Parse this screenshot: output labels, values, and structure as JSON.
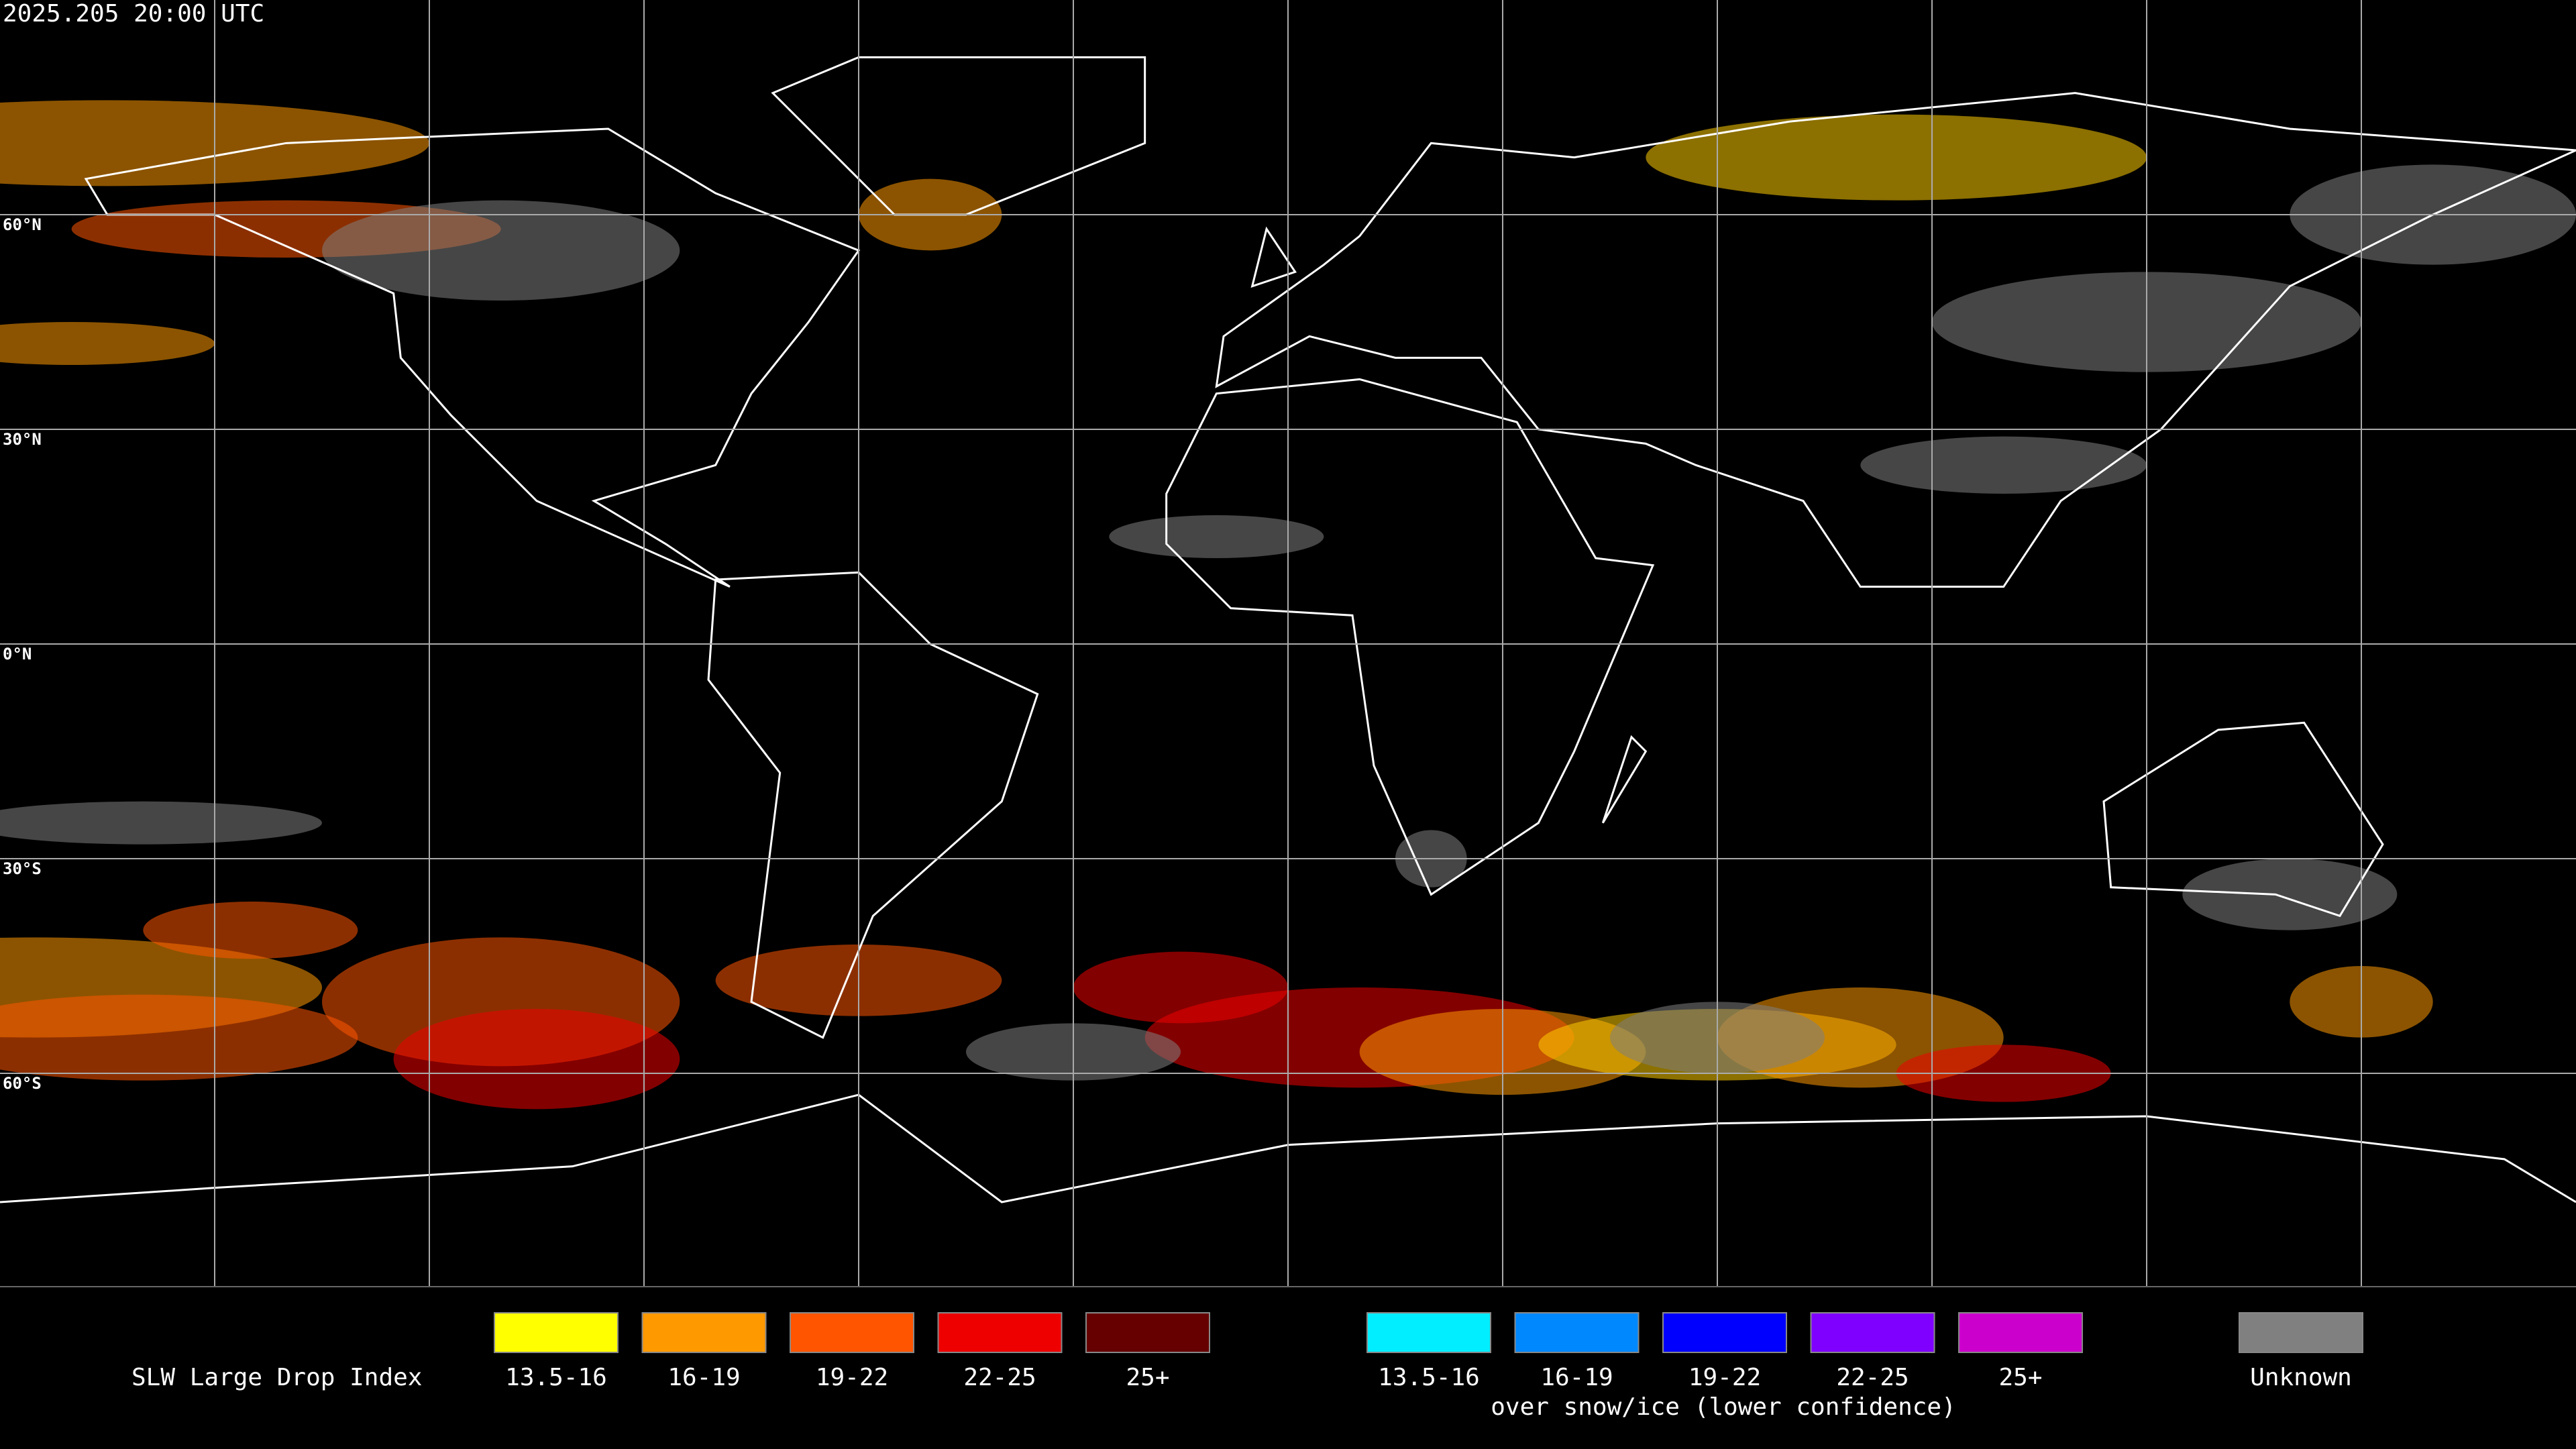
{
  "timestamp": "2025.205 20:00 UTC",
  "map": {
    "lat_labels": [
      "60°N",
      "30°N",
      "0°N",
      "30°S",
      "60°S"
    ]
  },
  "legend": {
    "title": "SLW Large Drop Index",
    "groups": [
      {
        "items": [
          {
            "label": "13.5-16",
            "color": "#ffff00"
          },
          {
            "label": "16-19",
            "color": "#ff9900"
          },
          {
            "label": "19-22",
            "color": "#ff5500"
          },
          {
            "label": "22-25",
            "color": "#ee0000"
          },
          {
            "label": "25+",
            "color": "#660000"
          }
        ]
      },
      {
        "items": [
          {
            "label": "13.5-16",
            "color": "#00eeff"
          },
          {
            "label": "16-19",
            "color": "#0088ff"
          },
          {
            "label": "19-22",
            "color": "#0000ff"
          },
          {
            "label": "22-25",
            "color": "#8000ff"
          },
          {
            "label": "25+",
            "color": "#cc00cc"
          }
        ],
        "note": "over snow/ice (lower confidence)"
      }
    ],
    "unknown": {
      "label": "Unknown",
      "color": "#808080"
    }
  }
}
